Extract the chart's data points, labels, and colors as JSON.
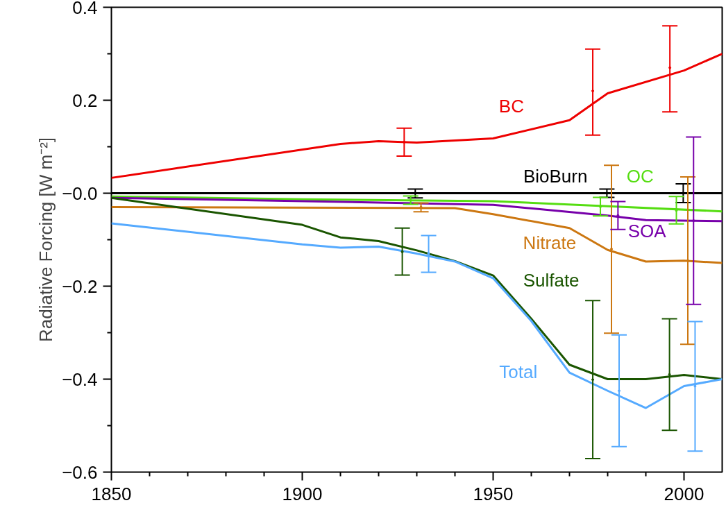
{
  "chart_data": {
    "type": "line",
    "ylabel": "Radiative Forcing [W m⁻²]",
    "xlim": [
      1850,
      2010
    ],
    "xticks": [
      1850,
      1900,
      1950,
      2000
    ],
    "ylim": [
      -0.6,
      0.4
    ],
    "yticks": [
      {
        "value": -0.6,
        "label": "−0.6"
      },
      {
        "value": -0.4,
        "label": "−0.4"
      },
      {
        "value": -0.2,
        "label": "−0.2"
      },
      {
        "value": 0,
        "label": "−0.0"
      },
      {
        "value": 0.2,
        "label": "0.2"
      },
      {
        "value": 0.4,
        "label": "0.4"
      }
    ],
    "grid": false,
    "legend": false,
    "line_style": "solid",
    "series": [
      {
        "name": "BC",
        "color": "#ee0000",
        "x": [
          1850,
          1910,
          1920,
          1930,
          1950,
          1970,
          1980,
          2000,
          2010
        ],
        "values": [
          0.033,
          0.106,
          0.112,
          0.109,
          0.118,
          0.157,
          0.215,
          0.264,
          0.3
        ]
      },
      {
        "name": "BioBurn",
        "color": "#000000",
        "x": [
          1850,
          2010
        ],
        "values": [
          0,
          0
        ]
      },
      {
        "name": "OC",
        "color": "#55dd11",
        "x": [
          1850,
          1900,
          1950,
          1980,
          2010
        ],
        "values": [
          -0.007,
          -0.013,
          -0.017,
          -0.028,
          -0.039
        ]
      },
      {
        "name": "SOA",
        "color": "#7700aa",
        "x": [
          1850,
          1920,
          1950,
          1980,
          1990,
          2010
        ],
        "values": [
          -0.01,
          -0.02,
          -0.025,
          -0.048,
          -0.058,
          -0.06
        ]
      },
      {
        "name": "Nitrate",
        "color": "#cc7711",
        "x": [
          1850,
          1940,
          1950,
          1970,
          1980,
          1990,
          2000,
          2010
        ],
        "values": [
          -0.03,
          -0.032,
          -0.045,
          -0.075,
          -0.122,
          -0.147,
          -0.145,
          -0.15
        ]
      },
      {
        "name": "Sulfate",
        "color": "#1a5500",
        "x": [
          1850,
          1900,
          1910,
          1920,
          1930,
          1940,
          1950,
          1960,
          1970,
          1980,
          1990,
          2000,
          2010
        ],
        "values": [
          -0.01,
          -0.068,
          -0.095,
          -0.103,
          -0.123,
          -0.146,
          -0.177,
          -0.27,
          -0.369,
          -0.4,
          -0.4,
          -0.391,
          -0.4
        ]
      },
      {
        "name": "Total",
        "color": "#55aaff",
        "x": [
          1850,
          1900,
          1910,
          1920,
          1930,
          1940,
          1950,
          1960,
          1970,
          1980,
          1990,
          2000,
          2010
        ],
        "values": [
          -0.065,
          -0.11,
          -0.117,
          -0.115,
          -0.13,
          -0.147,
          -0.183,
          -0.275,
          -0.386,
          -0.425,
          -0.462,
          -0.415,
          -0.4
        ]
      },
      {
        "type": "scatter",
        "color": "#ee0000",
        "x": [
          1926.7,
          1976.1,
          1996.3
        ],
        "values": [
          0.11,
          0.22,
          0.27
        ],
        "errors": [
          [
            0.08,
            0.14
          ],
          [
            0.125,
            0.31
          ],
          [
            0.175,
            0.36
          ]
        ]
      },
      {
        "type": "scatter",
        "color": "#000000",
        "x": [
          1929.6,
          1979.8,
          1999.8
        ],
        "values": [
          0,
          0,
          0
        ],
        "errors": [
          [
            -0.01,
            0.009
          ],
          [
            -0.009,
            0.009
          ],
          [
            -0.02,
            0.02
          ]
        ]
      },
      {
        "type": "scatter",
        "color": "#55dd11",
        "x": [
          1928.4,
          1978.1,
          1998
        ],
        "values": [
          -0.015,
          -0.029,
          -0.037
        ],
        "errors": [
          [
            -0.024,
            -0.006
          ],
          [
            -0.049,
            -0.009
          ],
          [
            -0.066,
            -0.007
          ]
        ]
      },
      {
        "type": "scatter",
        "color": "#cc7711",
        "x": [
          1931.1,
          1981,
          2001
        ],
        "values": [
          -0.03,
          -0.12,
          -0.145
        ],
        "errors": [
          [
            -0.04,
            -0.021
          ],
          [
            -0.301,
            0.06
          ],
          [
            -0.325,
            0.035
          ]
        ]
      },
      {
        "type": "scatter",
        "color": "#7700aa",
        "x": [
          1982.7,
          2002.5
        ],
        "values": [
          -0.048,
          -0.059
        ],
        "errors": [
          [
            -0.078,
            -0.018
          ],
          [
            -0.239,
            0.121
          ]
        ]
      },
      {
        "type": "scatter",
        "color": "#1a5500",
        "x": [
          1926.2,
          1976.1,
          1996.2
        ],
        "values": [
          -0.126,
          -0.401,
          -0.39
        ],
        "errors": [
          [
            -0.176,
            -0.075
          ],
          [
            -0.571,
            -0.231
          ],
          [
            -0.51,
            -0.27
          ]
        ]
      },
      {
        "type": "scatter",
        "color": "#55aaff",
        "x": [
          1933.1,
          1983,
          2002.9
        ],
        "values": [
          -0.13,
          -0.425,
          -0.415
        ],
        "errors": [
          [
            -0.17,
            -0.091
          ],
          [
            -0.545,
            -0.305
          ],
          [
            -0.555,
            -0.276
          ]
        ]
      }
    ]
  }
}
